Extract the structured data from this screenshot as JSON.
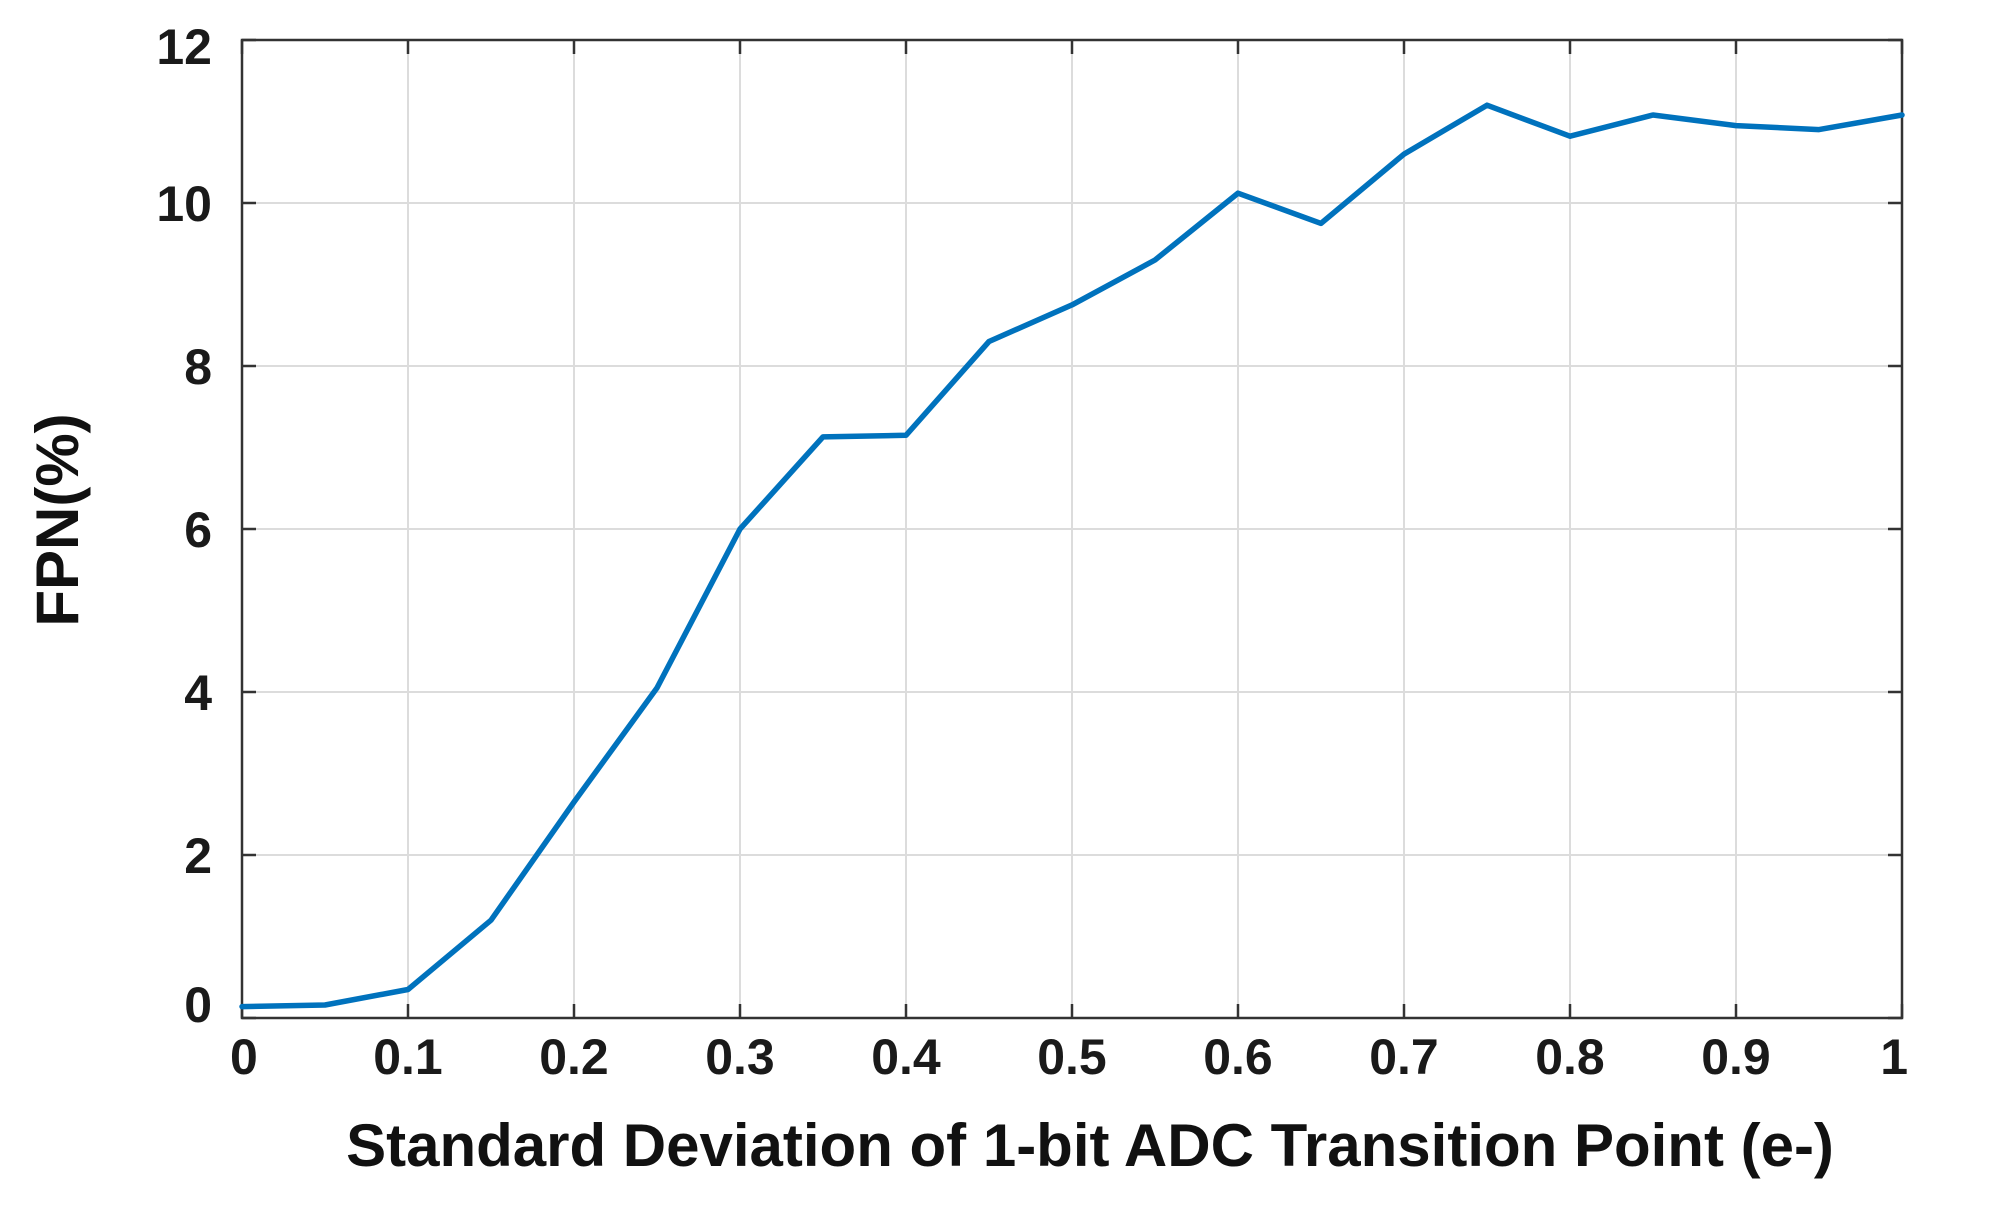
{
  "chart_data": {
    "type": "line",
    "title": "",
    "xlabel": "Standard Deviation of 1-bit ADC Transition Point (e-)",
    "ylabel": "FPN(%)",
    "xlim": [
      0,
      1
    ],
    "ylim": [
      0,
      12
    ],
    "xticks": [
      "0",
      "0.1",
      "0.2",
      "0.3",
      "0.4",
      "0.5",
      "0.6",
      "0.7",
      "0.8",
      "0.9",
      "1"
    ],
    "yticks": [
      "0",
      "2",
      "4",
      "6",
      "8",
      "10",
      "12"
    ],
    "grid": true,
    "legend": false,
    "colors": {
      "line": "#0072BD",
      "grid": "#dcdcdc",
      "axis": "#333333"
    },
    "series": [
      {
        "x": [
          0,
          0.05,
          0.1,
          0.15,
          0.2,
          0.25,
          0.3,
          0.35,
          0.4,
          0.45,
          0.5,
          0.55,
          0.6,
          0.65,
          0.7,
          0.75,
          0.8,
          0.85,
          0.9,
          0.95,
          1.0
        ],
        "values": [
          0.14,
          0.16,
          0.35,
          1.2,
          2.65,
          4.05,
          6.0,
          7.13,
          7.15,
          8.3,
          8.75,
          9.3,
          10.12,
          9.75,
          10.6,
          11.2,
          10.82,
          11.08,
          10.95,
          10.9,
          11.08
        ]
      }
    ]
  }
}
